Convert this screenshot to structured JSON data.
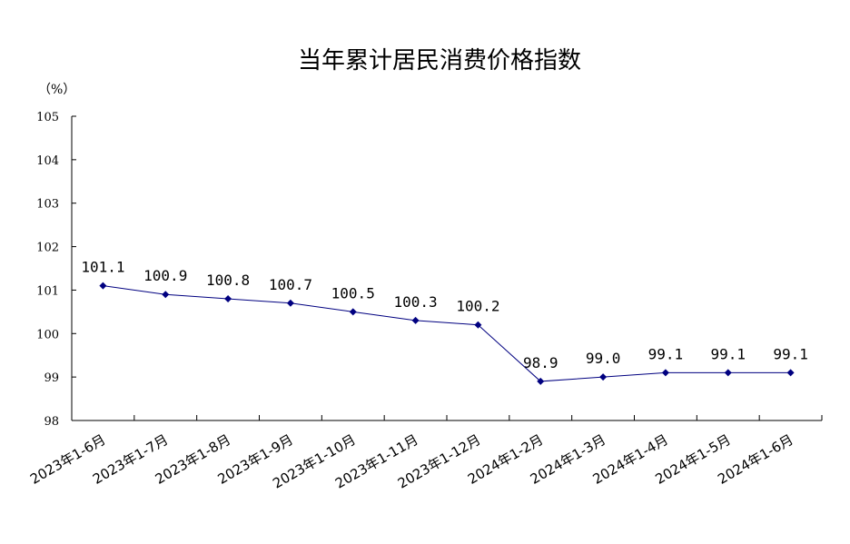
{
  "chart_data": {
    "type": "line",
    "title": "当年累计居民消费价格指数",
    "unit_label": "（%）",
    "categories": [
      "2023年1-6月",
      "2023年1-7月",
      "2023年1-8月",
      "2023年1-9月",
      "2023年1-10月",
      "2023年1-11月",
      "2023年1-12月",
      "2024年1-2月",
      "2024年1-3月",
      "2024年1-4月",
      "2024年1-5月",
      "2024年1-6月"
    ],
    "values": [
      101.1,
      100.9,
      100.8,
      100.7,
      100.5,
      100.3,
      100.2,
      98.9,
      99.0,
      99.1,
      99.1,
      99.1
    ],
    "data_labels": [
      "101.1",
      "100.9",
      "100.8",
      "100.7",
      "100.5",
      "100.3",
      "100.2",
      "98.9",
      "99.0",
      "99.1",
      "99.1",
      "99.1"
    ],
    "ylim": [
      98,
      105
    ],
    "yticks": [
      "98",
      "99",
      "100",
      "101",
      "102",
      "103",
      "104",
      "105"
    ],
    "xlabel": "",
    "ylabel": "",
    "grid": false,
    "legend": "none",
    "line_color": "#000080",
    "marker": "diamond"
  }
}
